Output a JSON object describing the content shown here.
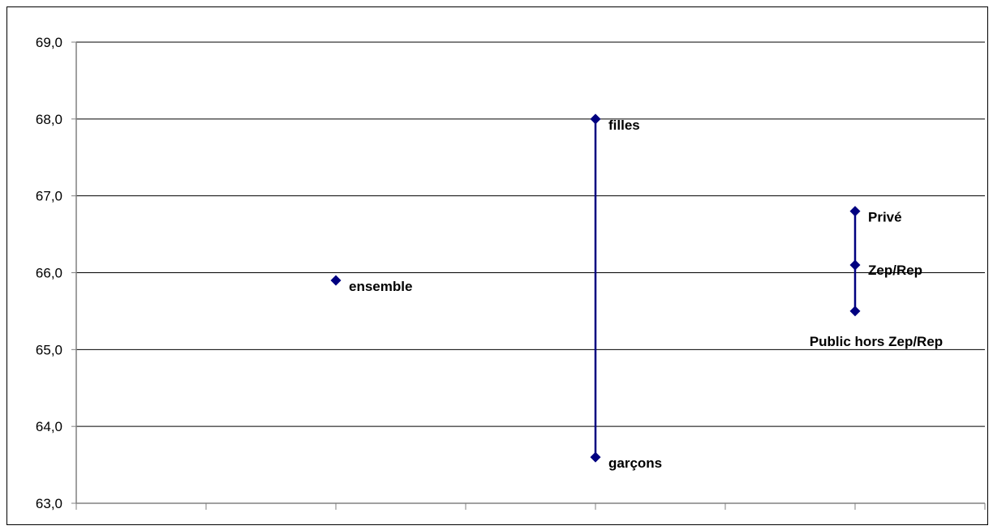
{
  "chart_data": {
    "type": "scatter",
    "title": "",
    "xlabel": "",
    "ylabel": "",
    "ylim": [
      63.0,
      69.0
    ],
    "yticks": [
      63.0,
      64.0,
      65.0,
      66.0,
      67.0,
      68.0,
      69.0
    ],
    "ytick_labels": [
      "63,0",
      "64,0",
      "65,0",
      "66,0",
      "67,0",
      "68,0",
      "69,0"
    ],
    "x_category_count": 7,
    "grid": "horizontal",
    "marker": "diamond",
    "colors": {
      "series": "#000080",
      "grid": "#000000",
      "axis": "#808080"
    },
    "points": [
      {
        "label": "ensemble",
        "x": 2,
        "y": 65.9
      },
      {
        "label": "filles",
        "x": 4,
        "y": 68.0
      },
      {
        "label": "garçons",
        "x": 4,
        "y": 63.6
      },
      {
        "label": "Privé",
        "x": 6,
        "y": 66.8
      },
      {
        "label": "Zep/Rep",
        "x": 6,
        "y": 66.1
      },
      {
        "label": "Public hors Zep/Rep",
        "x": 6,
        "y": 65.5
      }
    ],
    "ranges": [
      {
        "x": 4,
        "low": 63.6,
        "high": 68.0
      },
      {
        "x": 6,
        "low": 65.5,
        "high": 66.8
      }
    ]
  }
}
